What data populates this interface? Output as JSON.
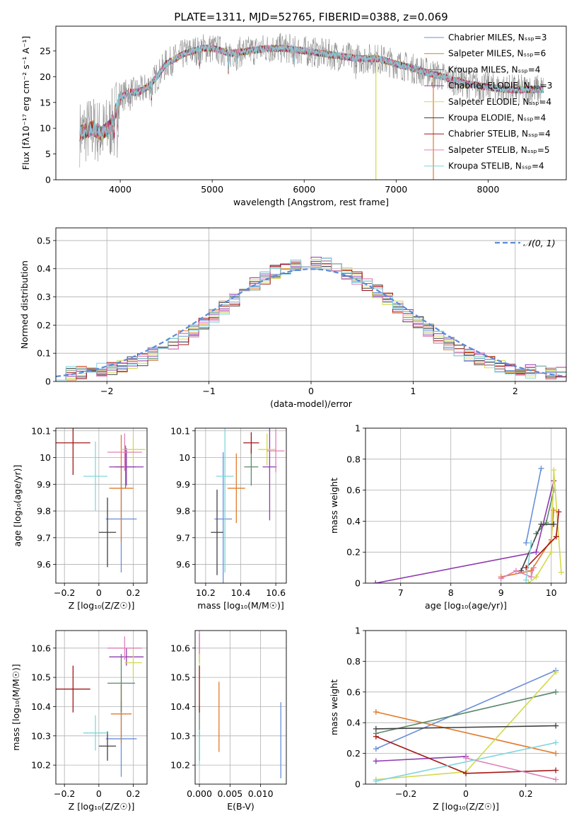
{
  "colors": [
    "#6a8fd8",
    "#e07b2a",
    "#5a8a6a",
    "#8e3bb0",
    "#d4d94a",
    "#404040",
    "#a31818",
    "#e07fb8",
    "#7fd6dd"
  ],
  "chart_data": [
    {
      "id": "spectrum",
      "type": "line",
      "title": "PLATE=1311, MJD=52765, FIBERID=0388, z=0.069",
      "xlabel": "wavelength [Angstrom, rest frame]",
      "ylabel": "Flux [fλ10⁻¹⁷ erg cm⁻² s⁻¹ A⁻¹]",
      "xlim": [
        3300,
        8850
      ],
      "ylim": [
        0,
        29.8
      ],
      "xticks": [
        4000,
        5000,
        6000,
        7000,
        8000
      ],
      "yticks": [
        0,
        5,
        10,
        15,
        20,
        25
      ],
      "grid": false,
      "legend_position": "top-right",
      "legend": [
        "Chabrier MILES, Nₛₛₚ=3",
        "Salpeter MILES, Nₛₛₚ=6",
        "Kroupa MILES, Nₛₛₚ=4",
        "Chabrier ELODIE, Nₛₛₚ=3",
        "Salpeter ELODIE, Nₛₛₚ=4",
        "Kroupa ELODIE, Nₛₛₚ=4",
        "Chabrier STELIB, Nₛₛₚ=4",
        "Salpeter STELIB, Nₛₛₚ=5",
        "Kroupa STELIB, Nₛₛₚ=4"
      ],
      "continuum": {
        "x": [
          3560,
          3700,
          3800,
          3900,
          4000,
          4100,
          4200,
          4300,
          4400,
          4500,
          4700,
          4900,
          5000,
          5200,
          5400,
          5600,
          5800,
          6000,
          6200,
          6400,
          6600,
          6800,
          7000,
          7200,
          7400,
          7600,
          7800,
          8000,
          8200,
          8400,
          8600
        ],
        "y": [
          9,
          10,
          9,
          10.5,
          16,
          17,
          17,
          18,
          20,
          22.5,
          24.5,
          25.5,
          25.5,
          24.5,
          25,
          25.5,
          25.5,
          25,
          24.5,
          24,
          23.5,
          23.5,
          22.5,
          21.5,
          20.5,
          19.5,
          18.5,
          18,
          17.5,
          17.5,
          17.5
        ]
      }
    },
    {
      "id": "residuals",
      "type": "histogram",
      "xlabel": "(data-model)/error",
      "ylabel": "Normed distribution",
      "xlim": [
        -2.5,
        2.5
      ],
      "ylim": [
        0,
        0.545
      ],
      "xticks": [
        -2,
        -1,
        0,
        1,
        2
      ],
      "yticks": [
        0.0,
        0.1,
        0.2,
        0.3,
        0.4,
        0.5
      ],
      "grid": true,
      "bin_width": 0.1,
      "legend": [
        "𝒩(0, 1)"
      ],
      "legend_position": "top-right",
      "reference_curve": "normal(0,1)"
    },
    {
      "id": "age_vs_Z",
      "type": "scatter",
      "xlabel": "Z [log₁₀(Z/Z☉)]",
      "ylabel": "age  [log₁₀(age/yr)]",
      "xlim": [
        -0.25,
        0.28
      ],
      "ylim": [
        9.53,
        10.11
      ],
      "xticks": [
        -0.2,
        0.0,
        0.2
      ],
      "yticks": [
        9.6,
        9.7,
        9.8,
        9.9,
        10.0,
        10.1
      ],
      "grid": true,
      "points": [
        {
          "x": 0.13,
          "xerr": 0.09,
          "y": 9.77,
          "yerr": 0.2
        },
        {
          "x": 0.13,
          "xerr": 0.07,
          "y": 9.885,
          "yerr": 0.2
        },
        {
          "x": 0.155,
          "xerr": 0.06,
          "y": 9.965,
          "yerr": 0.08
        },
        {
          "x": 0.16,
          "xerr": 0.1,
          "y": 9.965,
          "yerr": 0.07
        },
        {
          "x": 0.2,
          "xerr": 0.07,
          "y": 10.03,
          "yerr": 0.05
        },
        {
          "x": 0.05,
          "xerr": 0.05,
          "y": 9.72,
          "yerr": 0.13
        },
        {
          "x": -0.15,
          "xerr": 0.1,
          "y": 10.055,
          "yerr": 0.12
        },
        {
          "x": 0.15,
          "xerr": 0.1,
          "y": 10.02,
          "yerr": 0.07
        },
        {
          "x": -0.02,
          "xerr": 0.07,
          "y": 9.93,
          "yerr": 0.13
        }
      ]
    },
    {
      "id": "age_vs_mass",
      "type": "scatter",
      "xlabel": "mass [log₁₀(M/M☉)]",
      "ylabel": "",
      "xlim": [
        10.14,
        10.66
      ],
      "ylim": [
        9.53,
        10.11
      ],
      "xticks": [
        10.2,
        10.4,
        10.6
      ],
      "yticks": [
        9.6,
        9.7,
        9.8,
        9.9,
        10.0,
        10.1
      ],
      "grid": true,
      "points": [
        {
          "x": 10.3,
          "xerr": 0.05,
          "y": 9.77,
          "yerr": 0.25
        },
        {
          "x": 10.375,
          "xerr": 0.05,
          "y": 9.885,
          "yerr": 0.13
        },
        {
          "x": 10.46,
          "xerr": 0.04,
          "y": 9.965,
          "yerr": 0.07
        },
        {
          "x": 10.565,
          "xerr": 0.04,
          "y": 9.965,
          "yerr": 0.2
        },
        {
          "x": 10.55,
          "xerr": 0.05,
          "y": 10.03,
          "yerr": 0.06
        },
        {
          "x": 10.265,
          "xerr": 0.035,
          "y": 9.72,
          "yerr": 0.16
        },
        {
          "x": 10.46,
          "xerr": 0.045,
          "y": 10.055,
          "yerr": 0.04
        },
        {
          "x": 10.6,
          "xerr": 0.05,
          "y": 10.025,
          "yerr": 0.08
        },
        {
          "x": 10.31,
          "xerr": 0.05,
          "y": 9.93,
          "yerr": 0.36
        }
      ]
    },
    {
      "id": "weight_vs_age",
      "type": "line",
      "xlabel": "age  [log₁₀(age/yr)]",
      "ylabel": "mass weight",
      "xlim": [
        6.3,
        10.3
      ],
      "ylim": [
        0,
        1
      ],
      "xticks": [
        7,
        8,
        9,
        10
      ],
      "yticks": [
        0.0,
        0.2,
        0.4,
        0.6,
        0.8,
        1.0
      ],
      "grid": true,
      "series": [
        {
          "x": [
            9.5,
            9.8
          ],
          "y": [
            0.26,
            0.74
          ]
        },
        {
          "x": [
            9.0,
            9.6,
            10.0,
            10.05
          ],
          "y": [
            0.04,
            0.08,
            0.28,
            0.47
          ]
        },
        {
          "x": [
            9.7,
            9.9,
            10.05
          ],
          "y": [
            0.32,
            0.39,
            0.6
          ]
        },
        {
          "x": [
            6.5,
            9.7,
            10.05
          ],
          "y": [
            0.0,
            0.2,
            0.66
          ]
        },
        {
          "x": [
            9.55,
            9.7,
            10.0,
            10.05,
            10.2
          ],
          "y": [
            0.0,
            0.04,
            0.2,
            0.73,
            0.07
          ]
        },
        {
          "x": [
            9.4,
            9.8,
            10.05
          ],
          "y": [
            0.08,
            0.38,
            0.38
          ]
        },
        {
          "x": [
            9.5,
            10.1,
            10.15
          ],
          "y": [
            0.1,
            0.3,
            0.46
          ]
        },
        {
          "x": [
            9.0,
            9.3,
            9.6,
            9.65
          ],
          "y": [
            0.03,
            0.08,
            0.04,
            0.1
          ]
        },
        {
          "x": [
            9.5,
            9.6
          ],
          "y": [
            0.02,
            0.26
          ]
        }
      ]
    },
    {
      "id": "mass_vs_Z",
      "type": "scatter",
      "xlabel": "Z [log₁₀(Z/Z☉)]",
      "ylabel": "mass [log₁₀(M/M☉)]",
      "xlim": [
        -0.25,
        0.28
      ],
      "ylim": [
        10.135,
        10.66
      ],
      "xticks": [
        -0.2,
        0.0,
        0.2
      ],
      "yticks": [
        10.2,
        10.3,
        10.4,
        10.5,
        10.6
      ],
      "grid": true,
      "points": [
        {
          "x": 0.13,
          "xerr": 0.09,
          "y": 10.29,
          "yerr": 0.13
        },
        {
          "x": 0.13,
          "xerr": 0.06,
          "y": 10.375,
          "yerr": 0.1
        },
        {
          "x": 0.13,
          "xerr": 0.08,
          "y": 10.48,
          "yerr": 0.1
        },
        {
          "x": 0.16,
          "xerr": 0.1,
          "y": 10.57,
          "yerr": 0.03
        },
        {
          "x": 0.2,
          "xerr": 0.05,
          "y": 10.55,
          "yerr": 0.05
        },
        {
          "x": 0.05,
          "xerr": 0.05,
          "y": 10.265,
          "yerr": 0.05
        },
        {
          "x": -0.15,
          "xerr": 0.1,
          "y": 10.46,
          "yerr": 0.08
        },
        {
          "x": 0.15,
          "xerr": 0.1,
          "y": 10.6,
          "yerr": 0.04
        },
        {
          "x": -0.02,
          "xerr": 0.07,
          "y": 10.31,
          "yerr": 0.06
        }
      ]
    },
    {
      "id": "mass_vs_EBV",
      "type": "scatter",
      "xlabel": "E(B-V)",
      "ylabel": "",
      "xlim": [
        -0.0007,
        0.0142
      ],
      "ylim": [
        10.135,
        10.66
      ],
      "xticks": [
        0.0,
        0.005,
        0.01
      ],
      "xticklabels": [
        "0.000",
        "0.005",
        "0.010"
      ],
      "yticks": [
        10.2,
        10.3,
        10.4,
        10.5,
        10.6
      ],
      "grid": true,
      "points": [
        {
          "x": 0.0133,
          "y": 10.285,
          "yerr": 0.13
        },
        {
          "x": 0.0032,
          "y": 10.365,
          "yerr": 0.12
        },
        {
          "x": 0.0,
          "y": 10.35,
          "yerr": 0.05
        },
        {
          "x": 0.0,
          "y": 10.6,
          "yerr": 0.05
        },
        {
          "x": 0.0,
          "y": 10.55,
          "yerr": 0.05
        },
        {
          "x": 0.0,
          "y": 10.265,
          "yerr": 0.05
        },
        {
          "x": 0.0,
          "y": 10.46,
          "yerr": 0.08
        },
        {
          "x": 0.0,
          "y": 10.62,
          "yerr": 0.04
        },
        {
          "x": 0.0,
          "y": 10.26,
          "yerr": 0.06
        }
      ]
    },
    {
      "id": "weight_vs_Z",
      "type": "line",
      "xlabel": "Z [log₁₀(Z/Z☉)]",
      "ylabel": "mass weight",
      "xlim": [
        -0.335,
        0.335
      ],
      "ylim": [
        0,
        1
      ],
      "xticks": [
        -0.2,
        0.0,
        0.2
      ],
      "yticks": [
        0.0,
        0.2,
        0.4,
        0.6,
        0.8,
        1.0
      ],
      "grid": true,
      "series": [
        {
          "x": [
            -0.3,
            0.3
          ],
          "y": [
            0.23,
            0.74
          ]
        },
        {
          "x": [
            -0.3,
            0.3
          ],
          "y": [
            0.47,
            0.2
          ]
        },
        {
          "x": [
            -0.3,
            0.3
          ],
          "y": [
            0.33,
            0.6
          ]
        },
        {
          "x": [
            -0.3,
            0.0
          ],
          "y": [
            0.15,
            0.18
          ]
        },
        {
          "x": [
            -0.3,
            0.0,
            0.3
          ],
          "y": [
            0.03,
            0.08,
            0.73
          ]
        },
        {
          "x": [
            -0.3,
            0.3
          ],
          "y": [
            0.36,
            0.38
          ]
        },
        {
          "x": [
            -0.3,
            0.0,
            0.3
          ],
          "y": [
            0.31,
            0.07,
            0.09
          ]
        },
        {
          "x": [
            0.0,
            0.3
          ],
          "y": [
            0.17,
            0.03
          ]
        },
        {
          "x": [
            -0.3,
            0.3
          ],
          "y": [
            0.02,
            0.27
          ]
        }
      ]
    }
  ]
}
